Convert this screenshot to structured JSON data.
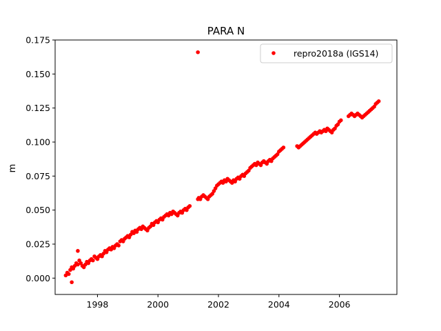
{
  "chart_data": {
    "type": "scatter",
    "title": "PARA N",
    "xlabel": "",
    "ylabel": "m",
    "xlim": [
      1996.6,
      2007.9
    ],
    "ylim": [
      -0.012,
      0.175
    ],
    "xticks": [
      1998,
      2000,
      2002,
      2004,
      2006
    ],
    "xtick_labels": [
      "1998",
      "2000",
      "2002",
      "2004",
      "2006"
    ],
    "yticks": [
      0.0,
      0.025,
      0.05,
      0.075,
      0.1,
      0.125,
      0.15,
      0.175
    ],
    "ytick_labels": [
      "0.000",
      "0.025",
      "0.050",
      "0.075",
      "0.100",
      "0.125",
      "0.150",
      "0.175"
    ],
    "grid": false,
    "legend": {
      "position": "top-right",
      "entries": [
        "repro2018a (IGS14)"
      ]
    },
    "colors": {
      "series": "#ff0000"
    },
    "series": [
      {
        "name": "repro2018a (IGS14)",
        "marker": "circle",
        "x": [
          1996.95,
          1997.0,
          1997.05,
          1997.1,
          1997.15,
          1997.2,
          1997.25,
          1997.3,
          1997.35,
          1997.4,
          1997.45,
          1997.5,
          1997.55,
          1997.6,
          1997.65,
          1997.7,
          1997.75,
          1997.8,
          1997.85,
          1997.9,
          1997.95,
          1998.0,
          1998.05,
          1998.1,
          1998.15,
          1998.2,
          1998.25,
          1998.3,
          1998.35,
          1998.4,
          1998.45,
          1998.5,
          1998.55,
          1998.6,
          1998.65,
          1998.7,
          1998.75,
          1998.8,
          1998.85,
          1998.9,
          1998.95,
          1999.0,
          1999.05,
          1999.1,
          1999.15,
          1999.2,
          1999.25,
          1999.3,
          1999.35,
          1999.4,
          1999.45,
          1999.5,
          1999.55,
          1999.6,
          1999.65,
          1999.7,
          1999.75,
          1999.8,
          1999.85,
          1999.9,
          1999.95,
          2000.0,
          2000.05,
          2000.1,
          2000.15,
          2000.2,
          2000.25,
          2000.3,
          2000.35,
          2000.4,
          2000.45,
          2000.5,
          2000.55,
          2000.6,
          2000.65,
          2000.7,
          2000.75,
          2000.8,
          2000.85,
          2000.9,
          2000.95,
          2001.0,
          2001.05,
          2001.32,
          2001.35,
          2001.4,
          2001.45,
          2001.5,
          2001.55,
          2001.6,
          2001.65,
          2001.7,
          2001.75,
          2001.8,
          2001.85,
          2001.9,
          2001.95,
          2002.0,
          2002.05,
          2002.1,
          2002.15,
          2002.2,
          2002.25,
          2002.3,
          2002.35,
          2002.4,
          2002.45,
          2002.5,
          2002.55,
          2002.6,
          2002.65,
          2002.7,
          2002.75,
          2002.8,
          2002.85,
          2002.9,
          2002.95,
          2003.0,
          2003.05,
          2003.1,
          2003.15,
          2003.2,
          2003.25,
          2003.3,
          2003.35,
          2003.4,
          2003.45,
          2003.5,
          2003.55,
          2003.6,
          2003.65,
          2003.7,
          2003.75,
          2003.8,
          2003.85,
          2003.9,
          2003.95,
          2004.0,
          2004.05,
          2004.1,
          2004.15,
          2004.6,
          2004.65,
          2004.7,
          2004.75,
          2004.8,
          2004.85,
          2004.9,
          2004.95,
          2005.0,
          2005.05,
          2005.1,
          2005.15,
          2005.2,
          2005.25,
          2005.3,
          2005.35,
          2005.4,
          2005.45,
          2005.5,
          2005.55,
          2005.6,
          2005.65,
          2005.7,
          2005.75,
          2005.8,
          2005.85,
          2005.9,
          2005.95,
          2006.0,
          2006.05,
          2006.3,
          2006.35,
          2006.4,
          2006.45,
          2006.5,
          2006.55,
          2006.6,
          2006.65,
          2006.7,
          2006.75,
          2006.8,
          2006.85,
          2006.9,
          2006.95,
          2007.0,
          2007.05,
          2007.1,
          2007.15,
          2007.2,
          2007.25,
          2007.3,
          1997.15,
          1997.35,
          2001.32
        ],
        "y": [
          0.002,
          0.004,
          0.003,
          0.006,
          0.008,
          0.007,
          0.009,
          0.011,
          0.01,
          0.013,
          0.011,
          0.009,
          0.008,
          0.01,
          0.012,
          0.011,
          0.013,
          0.014,
          0.013,
          0.016,
          0.015,
          0.014,
          0.016,
          0.017,
          0.016,
          0.018,
          0.02,
          0.019,
          0.021,
          0.022,
          0.021,
          0.023,
          0.022,
          0.024,
          0.025,
          0.024,
          0.027,
          0.028,
          0.027,
          0.029,
          0.03,
          0.031,
          0.03,
          0.032,
          0.034,
          0.033,
          0.035,
          0.034,
          0.036,
          0.037,
          0.036,
          0.038,
          0.037,
          0.036,
          0.035,
          0.037,
          0.038,
          0.04,
          0.039,
          0.041,
          0.042,
          0.041,
          0.043,
          0.044,
          0.043,
          0.045,
          0.046,
          0.047,
          0.046,
          0.048,
          0.047,
          0.049,
          0.048,
          0.047,
          0.046,
          0.048,
          0.049,
          0.048,
          0.05,
          0.051,
          0.05,
          0.052,
          0.053,
          0.058,
          0.059,
          0.058,
          0.06,
          0.061,
          0.06,
          0.059,
          0.058,
          0.06,
          0.061,
          0.062,
          0.064,
          0.066,
          0.068,
          0.069,
          0.07,
          0.071,
          0.07,
          0.072,
          0.071,
          0.073,
          0.072,
          0.071,
          0.07,
          0.072,
          0.071,
          0.073,
          0.074,
          0.073,
          0.075,
          0.076,
          0.075,
          0.077,
          0.078,
          0.079,
          0.081,
          0.082,
          0.083,
          0.084,
          0.083,
          0.085,
          0.084,
          0.083,
          0.085,
          0.086,
          0.085,
          0.084,
          0.086,
          0.087,
          0.086,
          0.088,
          0.089,
          0.09,
          0.091,
          0.093,
          0.094,
          0.095,
          0.096,
          0.097,
          0.096,
          0.097,
          0.098,
          0.099,
          0.1,
          0.101,
          0.102,
          0.103,
          0.104,
          0.105,
          0.106,
          0.107,
          0.106,
          0.107,
          0.108,
          0.107,
          0.108,
          0.109,
          0.108,
          0.11,
          0.109,
          0.108,
          0.107,
          0.109,
          0.11,
          0.112,
          0.113,
          0.115,
          0.116,
          0.119,
          0.12,
          0.121,
          0.12,
          0.119,
          0.12,
          0.121,
          0.12,
          0.119,
          0.118,
          0.119,
          0.12,
          0.121,
          0.122,
          0.123,
          0.124,
          0.125,
          0.126,
          0.128,
          0.129,
          0.13,
          -0.003,
          0.02,
          0.166
        ]
      }
    ]
  }
}
